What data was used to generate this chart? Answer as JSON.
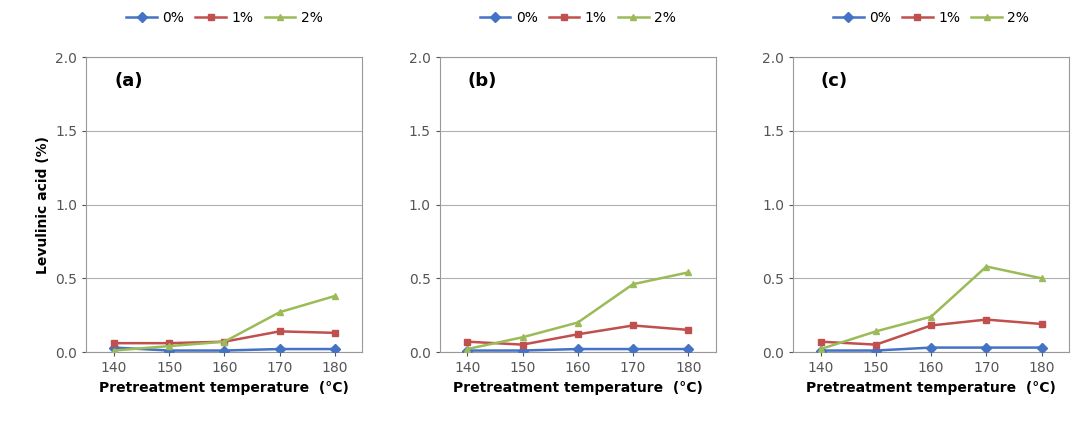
{
  "x": [
    140,
    150,
    160,
    170,
    180
  ],
  "panels": [
    {
      "label": "(a)",
      "series": {
        "0%": [
          0.03,
          0.01,
          0.01,
          0.02,
          0.02
        ],
        "1%": [
          0.06,
          0.06,
          0.07,
          0.14,
          0.13
        ],
        "2%": [
          0.01,
          0.04,
          0.07,
          0.27,
          0.38
        ]
      }
    },
    {
      "label": "(b)",
      "series": {
        "0%": [
          0.01,
          0.01,
          0.02,
          0.02,
          0.02
        ],
        "1%": [
          0.07,
          0.05,
          0.12,
          0.18,
          0.15
        ],
        "2%": [
          0.02,
          0.1,
          0.2,
          0.46,
          0.54
        ]
      }
    },
    {
      "label": "(c)",
      "series": {
        "0%": [
          0.01,
          0.01,
          0.03,
          0.03,
          0.03
        ],
        "1%": [
          0.07,
          0.05,
          0.18,
          0.22,
          0.19
        ],
        "2%": [
          0.02,
          0.14,
          0.24,
          0.58,
          0.5
        ]
      }
    }
  ],
  "colors": {
    "0%": "#4472c4",
    "1%": "#c0504d",
    "2%": "#9bbb59"
  },
  "markers": {
    "0%": "D",
    "1%": "s",
    "2%": "^"
  },
  "ylabel": "Levulinic acid (%)",
  "xlabel": "Pretreatment temperature  (°C)",
  "ylim": [
    0.0,
    2.0
  ],
  "yticks": [
    0.0,
    0.5,
    1.0,
    1.5,
    2.0
  ],
  "legend_labels": [
    "0%",
    "1%",
    "2%"
  ],
  "markersize": 5,
  "linewidth": 1.8,
  "background_color": "#ffffff",
  "grid_color": "#b0b0b0"
}
